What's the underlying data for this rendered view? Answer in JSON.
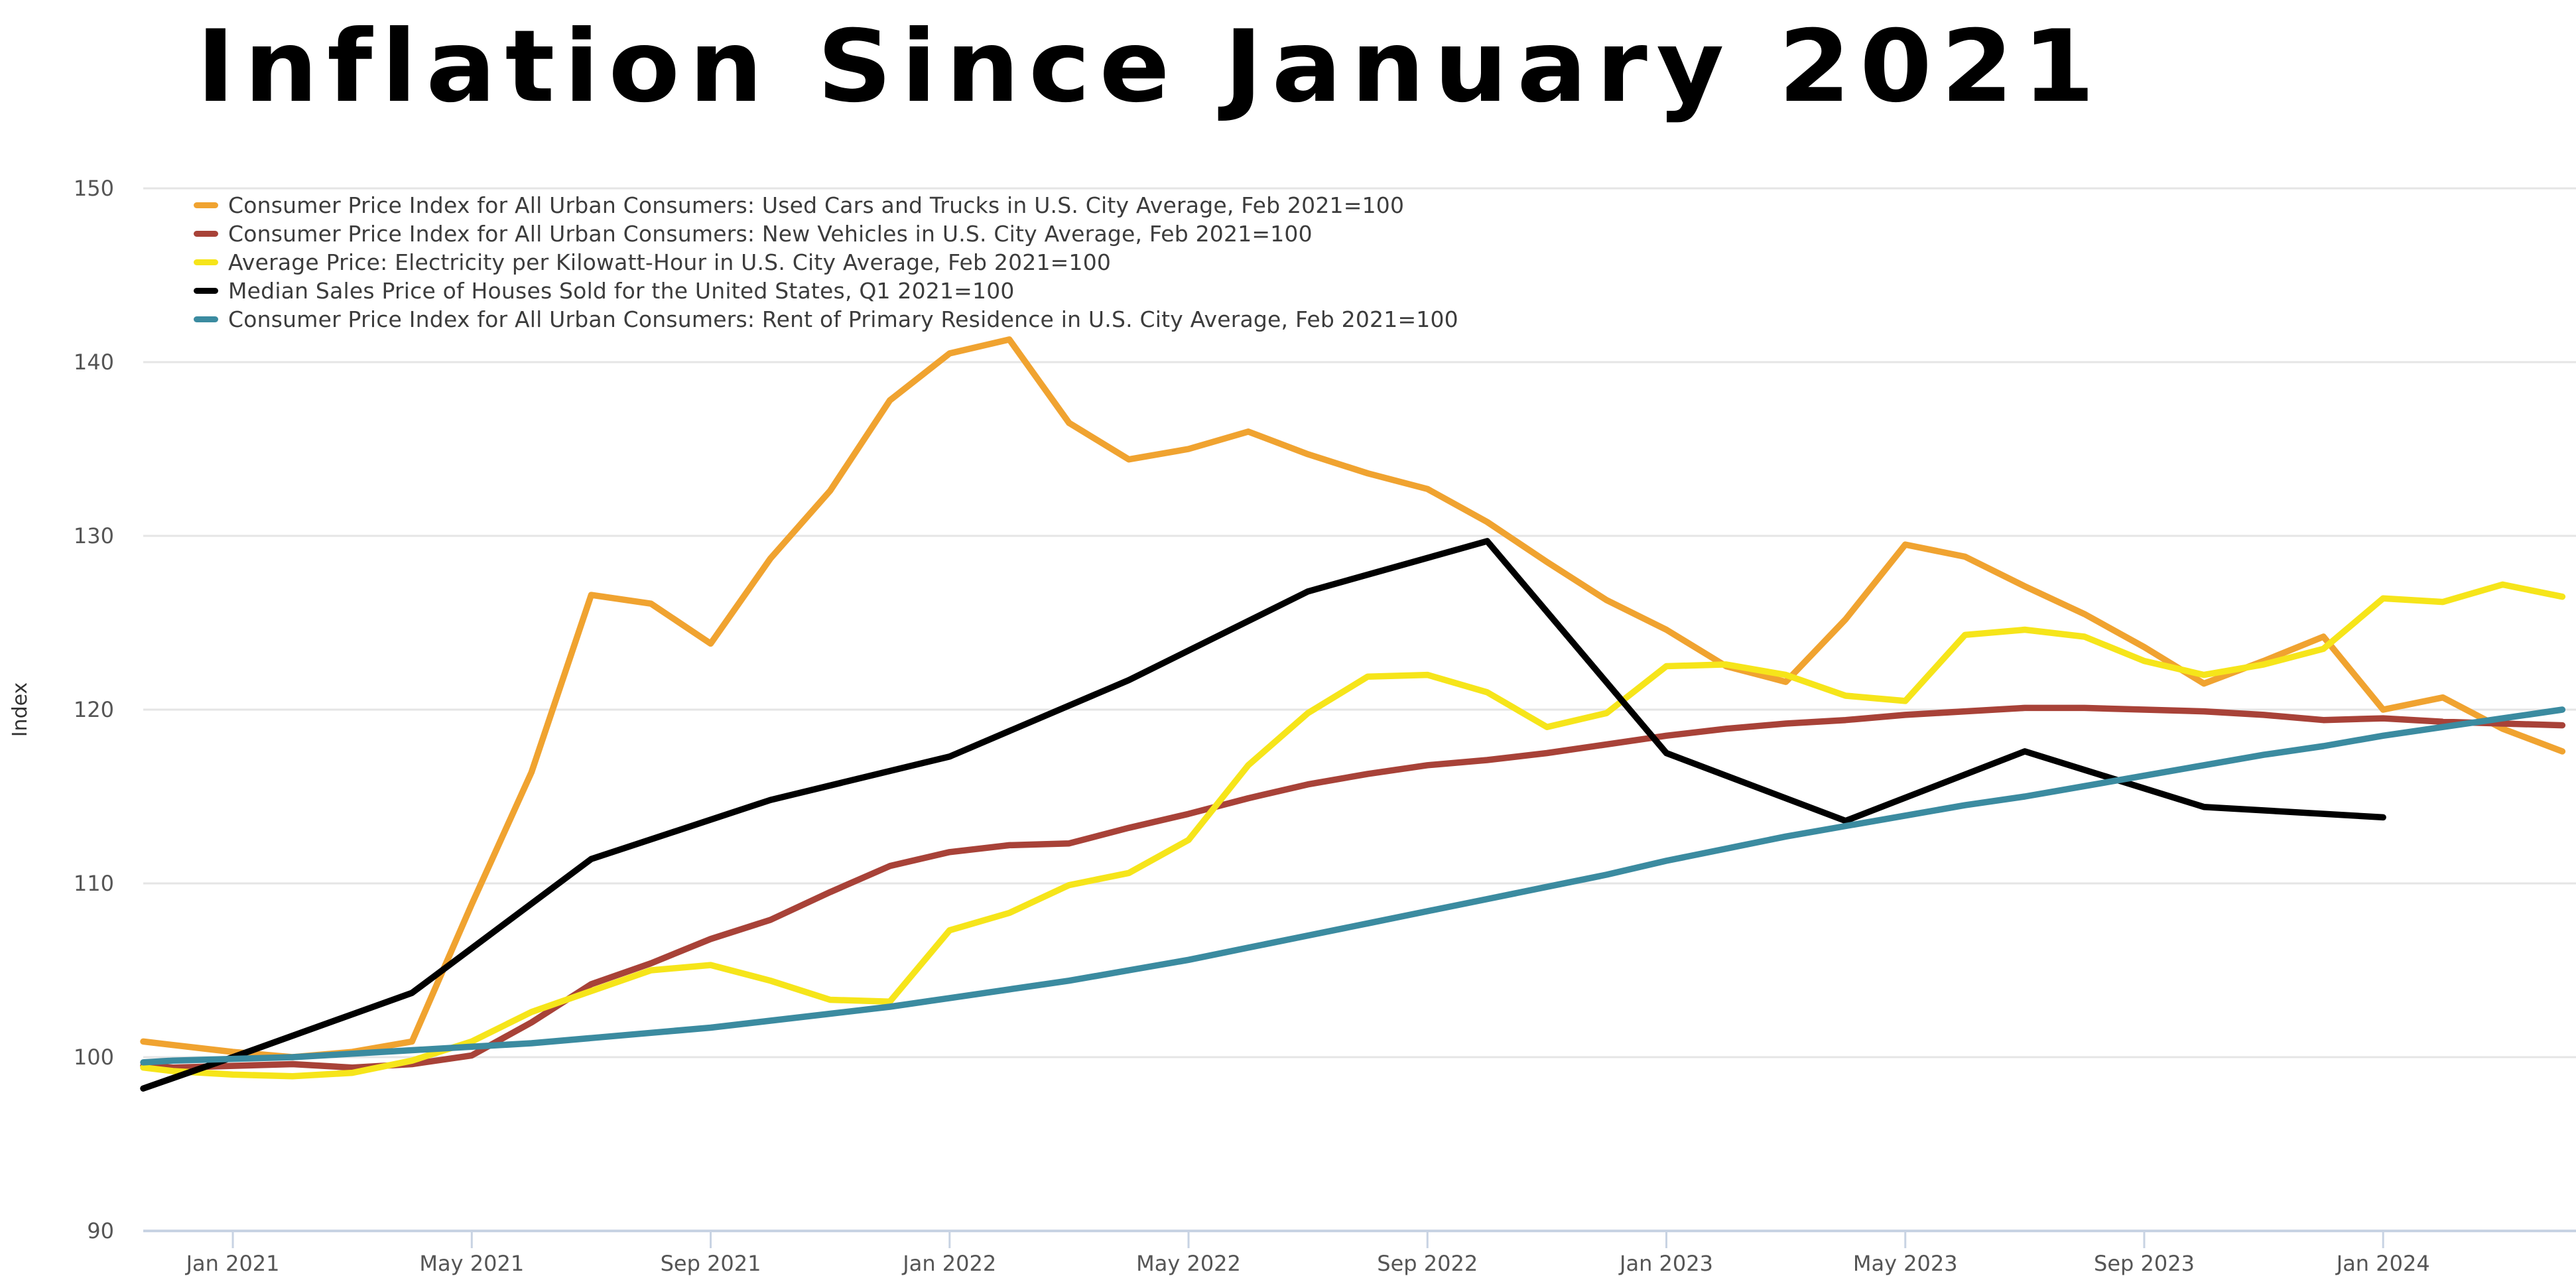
{
  "title": "Inflation Since January 2021",
  "y_axis": {
    "label": "Index",
    "tick_labels": [
      "150",
      "140",
      "130",
      "120",
      "110",
      "100",
      "90"
    ],
    "tick_values": [
      150,
      140,
      130,
      120,
      110,
      100,
      90
    ]
  },
  "x_axis": {
    "tick_labels": [
      "Jan 2021",
      "May 2021",
      "Sep 2021",
      "Jan 2022",
      "May 2022",
      "Sep 2022",
      "Jan 2023",
      "May 2023",
      "Sep 2023",
      "Jan 2024"
    ],
    "tick_month_offsets": [
      1,
      5,
      9,
      13,
      17,
      21,
      25,
      29,
      33,
      37
    ]
  },
  "legend": {
    "items": [
      {
        "label": "Consumer Price Index for All Urban Consumers: Used Cars and Trucks in U.S. City Average, Feb 2021=100",
        "color_key": "used_cars"
      },
      {
        "label": "Consumer Price Index for All Urban Consumers: New Vehicles in U.S. City Average, Feb 2021=100",
        "color_key": "new_vehicles"
      },
      {
        "label": "Average Price: Electricity per Kilowatt-Hour in U.S. City Average, Feb 2021=100",
        "color_key": "electricity"
      },
      {
        "label": "Median Sales Price of Houses Sold for the United States, Q1 2021=100",
        "color_key": "houses"
      },
      {
        "label": "Consumer Price Index for All Urban Consumers: Rent of Primary Residence in U.S. City Average, Feb 2021=100",
        "color_key": "rent"
      }
    ]
  },
  "colors": {
    "used_cars": "#F0A330",
    "new_vehicles": "#A84238",
    "electricity": "#F6E51A",
    "houses": "#000000",
    "rent": "#3B8BA0",
    "gridline": "#E5E5E5",
    "axis": "#C8D3E3",
    "axis_text": "#555555",
    "title_text": "#000000",
    "legend_text": "#3C3C3C"
  },
  "chart_data": {
    "type": "line",
    "title": "Inflation Since January 2021",
    "xlabel": "",
    "ylabel": "Index",
    "ylim": [
      88,
      152
    ],
    "grid": "horizontal",
    "legend_position": "top-left",
    "x_unit": "months since Dec 2020 (t=0 is Dec 2020; tick labels sit at t=1,5,9,...,37)",
    "y_gridline_values": [
      150,
      140,
      130,
      120,
      110,
      100
    ],
    "series": [
      {
        "name": "Consumer Price Index for All Urban Consumers: Used Cars and Trucks in U.S. City Average, Feb 2021=100",
        "short_name": "used-cars",
        "color_key": "used_cars",
        "t0": -0.5,
        "dt": 1,
        "values": [
          100.9,
          100.7,
          100.3,
          100.0,
          100.3,
          100.9,
          108.8,
          116.4,
          126.6,
          126.1,
          123.8,
          128.7,
          132.6,
          137.8,
          140.5,
          141.3,
          136.5,
          134.4,
          135.0,
          136.0,
          134.7,
          133.6,
          132.7,
          130.8,
          128.5,
          126.3,
          124.6,
          122.5,
          121.6,
          125.2,
          129.5,
          128.8,
          127.1,
          125.5,
          123.6,
          121.5,
          122.8,
          124.2,
          120.0,
          120.7,
          118.9,
          117.6
        ]
      },
      {
        "name": "Consumer Price Index for All Urban Consumers: New Vehicles in U.S. City Average, Feb 2021=100",
        "short_name": "new-vehicles",
        "color_key": "new_vehicles",
        "t0": -0.5,
        "dt": 1,
        "values": [
          99.5,
          99.4,
          99.5,
          99.6,
          99.4,
          99.6,
          100.1,
          102.0,
          104.2,
          105.4,
          106.8,
          107.9,
          109.5,
          111.0,
          111.8,
          112.2,
          112.3,
          113.2,
          114.0,
          114.9,
          115.7,
          116.3,
          116.8,
          117.1,
          117.5,
          118.0,
          118.5,
          118.9,
          119.2,
          119.4,
          119.7,
          119.9,
          120.1,
          120.1,
          120.0,
          119.9,
          119.7,
          119.4,
          119.5,
          119.3,
          119.2,
          119.1
        ]
      },
      {
        "name": "Average Price: Electricity per Kilowatt-Hour in U.S. City Average, Feb 2021=100",
        "short_name": "electricity",
        "color_key": "electricity",
        "t0": -0.5,
        "dt": 1,
        "values": [
          99.4,
          99.2,
          99.0,
          98.9,
          99.1,
          99.8,
          100.9,
          102.6,
          103.8,
          105.0,
          105.3,
          104.4,
          103.3,
          103.2,
          107.3,
          108.3,
          109.9,
          110.6,
          112.5,
          116.8,
          119.8,
          121.9,
          122.0,
          121.0,
          119.0,
          119.8,
          122.5,
          122.6,
          122.0,
          120.8,
          120.5,
          124.3,
          124.6,
          124.2,
          122.8,
          122.0,
          122.6,
          123.5,
          126.4,
          126.2,
          127.2,
          126.5
        ]
      },
      {
        "name": "Median Sales Price of Houses Sold for the United States, Q1 2021=100",
        "short_name": "houses",
        "color_key": "houses",
        "points": [
          [
            -0.5,
            98.2
          ],
          [
            1,
            100.0
          ],
          [
            4,
            103.7
          ],
          [
            7,
            111.4
          ],
          [
            10,
            114.8
          ],
          [
            13,
            117.3
          ],
          [
            16,
            121.7
          ],
          [
            19,
            126.8
          ],
          [
            22,
            129.7
          ],
          [
            25,
            117.5
          ],
          [
            28,
            113.6
          ],
          [
            31,
            117.6
          ],
          [
            34,
            114.4
          ],
          [
            37,
            113.8
          ]
        ]
      },
      {
        "name": "Consumer Price Index for All Urban Consumers: Rent of Primary Residence in U.S. City Average, Feb 2021=100",
        "short_name": "rent",
        "color_key": "rent",
        "t0": -0.5,
        "dt": 1,
        "values": [
          99.7,
          99.8,
          99.9,
          100.0,
          100.2,
          100.4,
          100.6,
          100.8,
          101.1,
          101.4,
          101.7,
          102.1,
          102.5,
          102.9,
          103.4,
          103.9,
          104.4,
          105.0,
          105.6,
          106.3,
          107.0,
          107.7,
          108.4,
          109.1,
          109.8,
          110.5,
          111.3,
          112.0,
          112.7,
          113.3,
          113.9,
          114.5,
          115.0,
          115.6,
          116.2,
          116.8,
          117.4,
          117.9,
          118.5,
          119.0,
          119.5,
          120.0
        ]
      }
    ]
  }
}
